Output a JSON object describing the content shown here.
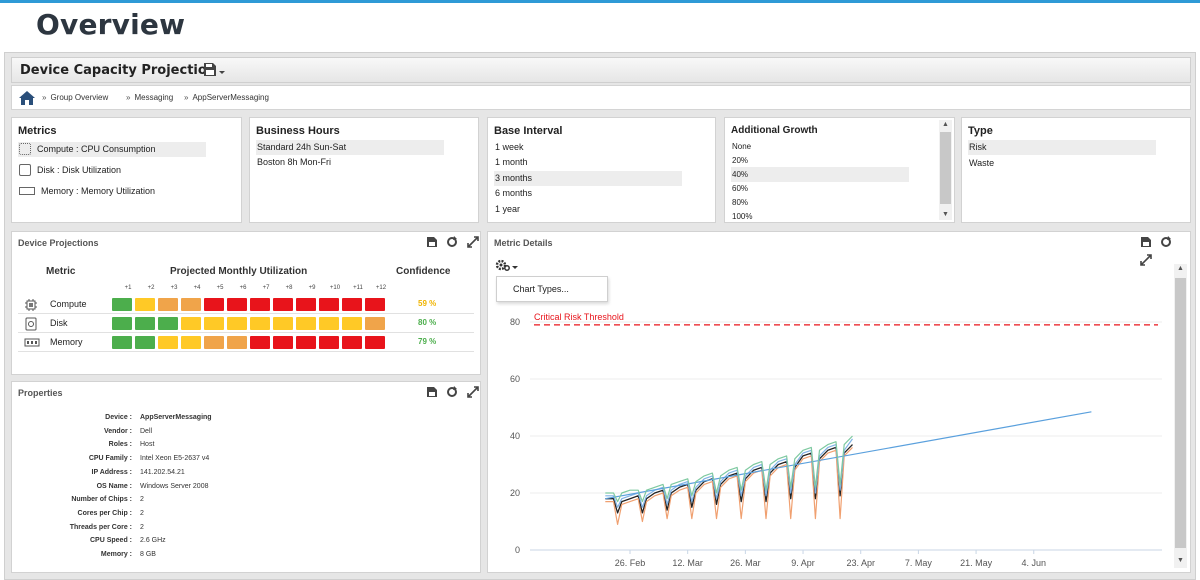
{
  "page": {
    "title": "Overview"
  },
  "app": {
    "title": "Device Capacity Projection",
    "save_icon": "save-icon"
  },
  "breadcrumb": [
    "Group Overview",
    "Messaging",
    "AppServerMessaging"
  ],
  "metrics": {
    "title": "Metrics",
    "items": [
      {
        "label": "Compute : CPU Consumption",
        "icon": "cpu-icon",
        "selected": true
      },
      {
        "label": "Disk : Disk Utilization",
        "icon": "disk-icon",
        "selected": false
      },
      {
        "label": "Memory : Memory Utilization",
        "icon": "memory-icon",
        "selected": false
      }
    ]
  },
  "business_hours": {
    "title": "Business Hours",
    "items": [
      {
        "label": "Standard 24h Sun-Sat",
        "selected": true
      },
      {
        "label": "Boston 8h Mon-Fri",
        "selected": false
      }
    ]
  },
  "base_interval": {
    "title": "Base Interval",
    "items": [
      {
        "label": "1 week",
        "selected": false
      },
      {
        "label": "1 month",
        "selected": false
      },
      {
        "label": "3 months",
        "selected": true
      },
      {
        "label": "6 months",
        "selected": false
      },
      {
        "label": "1 year",
        "selected": false
      }
    ]
  },
  "additional_growth": {
    "title": "Additional Growth",
    "items": [
      {
        "label": "None",
        "selected": false
      },
      {
        "label": "20%",
        "selected": false
      },
      {
        "label": "40%",
        "selected": true
      },
      {
        "label": "60%",
        "selected": false
      },
      {
        "label": "80%",
        "selected": false
      },
      {
        "label": "100%",
        "selected": false
      }
    ]
  },
  "type": {
    "title": "Type",
    "items": [
      {
        "label": "Risk",
        "selected": true
      },
      {
        "label": "Waste",
        "selected": false
      }
    ]
  },
  "device_projections": {
    "title": "Device Projections",
    "col_metric": "Metric",
    "col_projected": "Projected Monthly Utilization",
    "col_confidence": "Confidence",
    "months": [
      "+1",
      "+2",
      "+3",
      "+4",
      "+5",
      "+6",
      "+7",
      "+8",
      "+9",
      "+10",
      "+11",
      "+12"
    ],
    "colors": {
      "G": "#4cae4c",
      "Y": "#ffc926",
      "O": "#f0a44a",
      "R": "#e8141b"
    },
    "rows": [
      {
        "label": "Compute",
        "icon": "cpu-icon",
        "cells": [
          "G",
          "Y",
          "O",
          "O",
          "R",
          "R",
          "R",
          "R",
          "R",
          "R",
          "R",
          "R"
        ],
        "confidence": "59 %",
        "confidence_color": "#f0b400"
      },
      {
        "label": "Disk",
        "icon": "disk-icon",
        "cells": [
          "G",
          "G",
          "G",
          "Y",
          "Y",
          "Y",
          "Y",
          "Y",
          "Y",
          "Y",
          "Y",
          "O"
        ],
        "confidence": "80 %",
        "confidence_color": "#4cae4c"
      },
      {
        "label": "Memory",
        "icon": "memory-icon",
        "cells": [
          "G",
          "G",
          "Y",
          "Y",
          "O",
          "O",
          "R",
          "R",
          "R",
          "R",
          "R",
          "R"
        ],
        "confidence": "79 %",
        "confidence_color": "#4cae4c"
      }
    ]
  },
  "properties": {
    "title": "Properties",
    "rows": [
      {
        "key": "Device :",
        "value": "AppServerMessaging",
        "bold": true
      },
      {
        "key": "Vendor :",
        "value": "Dell"
      },
      {
        "key": "Roles :",
        "value": "Host"
      },
      {
        "key": "CPU Family :",
        "value": "Intel Xeon E5-2637 v4"
      },
      {
        "key": "IP Address :",
        "value": "141.202.54.21"
      },
      {
        "key": "OS Name :",
        "value": "Windows Server 2008"
      },
      {
        "key": "Number of Chips :",
        "value": "2"
      },
      {
        "key": "Cores per Chip :",
        "value": "2"
      },
      {
        "key": "Threads per Core :",
        "value": "2"
      },
      {
        "key": "CPU Speed :",
        "value": "2.6 GHz"
      },
      {
        "key": "Memory :",
        "value": "8 GB"
      }
    ]
  },
  "metric_details": {
    "title": "Metric Details",
    "menu_item": "Chart Types..."
  },
  "chart_data": {
    "type": "line",
    "title": "",
    "xlabel": "",
    "ylabel": "",
    "ylim": [
      0,
      90
    ],
    "xlim_days": [
      0,
      116
    ],
    "y_ticks": [
      0,
      20,
      40,
      60,
      80
    ],
    "x_tick_labels": [
      "26. Feb",
      "12. Mar",
      "26. Mar",
      "9. Apr",
      "23. Apr",
      "7. May",
      "21. May",
      "4. Jun"
    ],
    "x_tick_days": [
      0,
      14,
      28,
      42,
      56,
      70,
      84,
      98
    ],
    "threshold": {
      "label": "Critical Risk Threshold",
      "value": 79,
      "color": "#e8141b"
    },
    "series": [
      {
        "color": "#222222",
        "points_day_value": [
          [
            -6,
            18
          ],
          [
            -4,
            18
          ],
          [
            -3,
            13
          ],
          [
            -2,
            17
          ],
          [
            0,
            18
          ],
          [
            2,
            19
          ],
          [
            3,
            13
          ],
          [
            4,
            18
          ],
          [
            6,
            20
          ],
          [
            8,
            21
          ],
          [
            9,
            14
          ],
          [
            10,
            20
          ],
          [
            12,
            22
          ],
          [
            14,
            23
          ],
          [
            15,
            15
          ],
          [
            16,
            21
          ],
          [
            18,
            24
          ],
          [
            20,
            25
          ],
          [
            21,
            16
          ],
          [
            22,
            23
          ],
          [
            24,
            26
          ],
          [
            26,
            27
          ],
          [
            27,
            17
          ],
          [
            28,
            25
          ],
          [
            30,
            28
          ],
          [
            32,
            29
          ],
          [
            33,
            17
          ],
          [
            34,
            27
          ],
          [
            36,
            30
          ],
          [
            38,
            31
          ],
          [
            39,
            18
          ],
          [
            40,
            29
          ],
          [
            42,
            33
          ],
          [
            44,
            34
          ],
          [
            45,
            18
          ],
          [
            46,
            32
          ],
          [
            48,
            35
          ],
          [
            50,
            36
          ],
          [
            51,
            19
          ],
          [
            52,
            34
          ],
          [
            54,
            37
          ]
        ]
      },
      {
        "color": "#f0a070",
        "points_day_value": [
          [
            -6,
            17
          ],
          [
            -4,
            17
          ],
          [
            -3,
            9
          ],
          [
            -2,
            16
          ],
          [
            0,
            17
          ],
          [
            2,
            18
          ],
          [
            3,
            10
          ],
          [
            4,
            17
          ],
          [
            6,
            19
          ],
          [
            8,
            20
          ],
          [
            9,
            11
          ],
          [
            10,
            19
          ],
          [
            12,
            21
          ],
          [
            14,
            22
          ],
          [
            15,
            11
          ],
          [
            16,
            20
          ],
          [
            18,
            23
          ],
          [
            20,
            24
          ],
          [
            21,
            11
          ],
          [
            22,
            22
          ],
          [
            24,
            25
          ],
          [
            26,
            26
          ],
          [
            27,
            11
          ],
          [
            28,
            24
          ],
          [
            30,
            27
          ],
          [
            32,
            28
          ],
          [
            33,
            11
          ],
          [
            34,
            26
          ],
          [
            36,
            29
          ],
          [
            38,
            30
          ],
          [
            39,
            11
          ],
          [
            40,
            28
          ],
          [
            42,
            32
          ],
          [
            44,
            33
          ],
          [
            45,
            11
          ],
          [
            46,
            31
          ],
          [
            48,
            34
          ],
          [
            50,
            35
          ],
          [
            51,
            11
          ],
          [
            52,
            33
          ],
          [
            54,
            36
          ]
        ]
      },
      {
        "color": "#7fb2e5",
        "points_day_value": [
          [
            -6,
            19
          ],
          [
            -4,
            19
          ],
          [
            -3,
            15
          ],
          [
            -2,
            18
          ],
          [
            0,
            19
          ],
          [
            2,
            20
          ],
          [
            3,
            15
          ],
          [
            4,
            19
          ],
          [
            6,
            21
          ],
          [
            8,
            22
          ],
          [
            9,
            16
          ],
          [
            10,
            21
          ],
          [
            12,
            23
          ],
          [
            14,
            24
          ],
          [
            15,
            17
          ],
          [
            16,
            22
          ],
          [
            18,
            25
          ],
          [
            20,
            26
          ],
          [
            21,
            18
          ],
          [
            22,
            24
          ],
          [
            24,
            27
          ],
          [
            26,
            28
          ],
          [
            27,
            19
          ],
          [
            28,
            26
          ],
          [
            30,
            29
          ],
          [
            32,
            30
          ],
          [
            33,
            19
          ],
          [
            34,
            28
          ],
          [
            36,
            31
          ],
          [
            38,
            32
          ],
          [
            39,
            20
          ],
          [
            40,
            30
          ],
          [
            42,
            34
          ],
          [
            44,
            35
          ],
          [
            45,
            20
          ],
          [
            46,
            33
          ],
          [
            48,
            36
          ],
          [
            50,
            37
          ],
          [
            51,
            21
          ],
          [
            52,
            35
          ],
          [
            54,
            39
          ]
        ]
      },
      {
        "color": "#5aa0dd",
        "points_day_value": [
          [
            -6,
            18
          ],
          [
            112,
            48.5
          ]
        ]
      },
      {
        "color": "#7ec9a0",
        "points_day_value": [
          [
            -6,
            20
          ],
          [
            -4,
            20
          ],
          [
            -3,
            17
          ],
          [
            -2,
            20
          ],
          [
            0,
            21
          ],
          [
            2,
            21
          ],
          [
            3,
            17
          ],
          [
            4,
            21
          ],
          [
            6,
            22
          ],
          [
            8,
            23
          ],
          [
            9,
            18
          ],
          [
            10,
            23
          ],
          [
            12,
            24
          ],
          [
            14,
            25
          ],
          [
            15,
            19
          ],
          [
            16,
            24
          ],
          [
            18,
            26
          ],
          [
            20,
            27
          ],
          [
            21,
            20
          ],
          [
            22,
            26
          ],
          [
            24,
            28
          ],
          [
            26,
            29
          ],
          [
            27,
            21
          ],
          [
            28,
            28
          ],
          [
            30,
            30
          ],
          [
            32,
            31
          ],
          [
            33,
            21
          ],
          [
            34,
            30
          ],
          [
            36,
            32
          ],
          [
            38,
            33
          ],
          [
            39,
            22
          ],
          [
            40,
            32
          ],
          [
            42,
            35
          ],
          [
            44,
            36
          ],
          [
            45,
            22
          ],
          [
            46,
            35
          ],
          [
            48,
            37
          ],
          [
            50,
            38
          ],
          [
            51,
            23
          ],
          [
            52,
            37
          ],
          [
            54,
            40
          ]
        ]
      }
    ]
  }
}
